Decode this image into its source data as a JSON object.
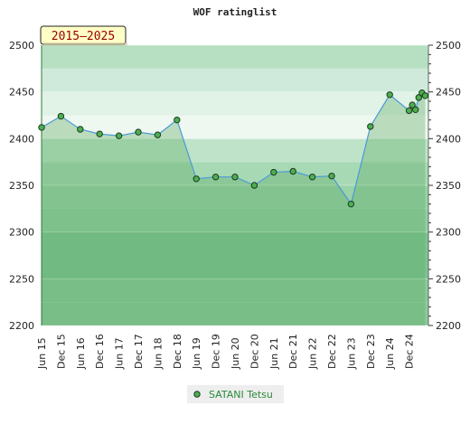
{
  "chart_data": {
    "type": "area",
    "title": "WOF ratinglist",
    "period_badge": "2015–2025",
    "xlabel": "",
    "ylabel": "",
    "ylim": [
      2200,
      2500
    ],
    "yticks": [
      2200,
      2250,
      2300,
      2350,
      2400,
      2450,
      2500
    ],
    "xticks": [
      "Jun 15",
      "Dec 15",
      "Jun 16",
      "Dec 16",
      "Jun 17",
      "Dec 17",
      "Jun 18",
      "Dec 18",
      "Jun 19",
      "Dec 19",
      "Jun 20",
      "Dec 20",
      "Jun 21",
      "Dec 21",
      "Jun 22",
      "Dec 22",
      "Jun 23",
      "Dec 23",
      "Jun 24",
      "Dec 24"
    ],
    "grid": true,
    "legend": "bottom-center",
    "series": [
      {
        "name": "SATANI Tetsu",
        "color": "#2a8a3a",
        "x": [
          "2015-06",
          "2015-12",
          "2016-06",
          "2016-12",
          "2017-06",
          "2017-12",
          "2018-06",
          "2018-12",
          "2019-06",
          "2019-12",
          "2020-06",
          "2020-12",
          "2021-06",
          "2021-12",
          "2022-06",
          "2022-12",
          "2023-06",
          "2023-12",
          "2024-06",
          "2024-12",
          "2025-01",
          "2025-02",
          "2025-03",
          "2025-04",
          "2025-05"
        ],
        "values": [
          2412,
          2424,
          2410,
          2405,
          2403,
          2407,
          2404,
          2420,
          2357,
          2359,
          2359,
          2350,
          2364,
          2365,
          2359,
          2360,
          2330,
          2413,
          2447,
          2430,
          2436,
          2431,
          2444,
          2449,
          2446
        ]
      }
    ]
  }
}
